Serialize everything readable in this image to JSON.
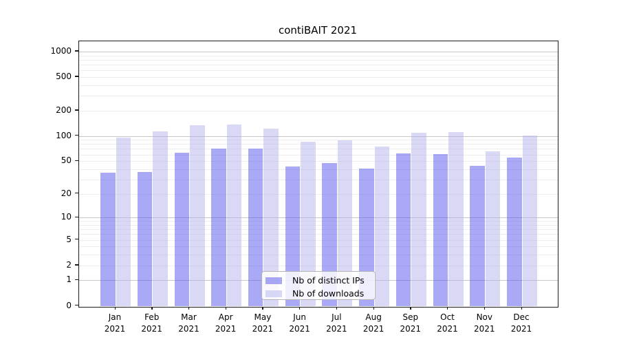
{
  "chart_data": {
    "type": "bar",
    "title": "contiBAIT 2021",
    "categories": [
      "Jan 2021",
      "Feb 2021",
      "Mar 2021",
      "Apr 2021",
      "May 2021",
      "Jun 2021",
      "Jul 2021",
      "Aug 2021",
      "Sep 2021",
      "Oct 2021",
      "Nov 2021",
      "Dec 2021"
    ],
    "category_line1": [
      "Jan",
      "Feb",
      "Mar",
      "Apr",
      "May",
      "Jun",
      "Jul",
      "Aug",
      "Sep",
      "Oct",
      "Nov",
      "Dec"
    ],
    "category_line2": "2021",
    "series": [
      {
        "name": "Nb of distinct IPs",
        "color": "rgba(83,83,235,0.5)",
        "solid_color": "#a9a9f5",
        "values": [
          36,
          37,
          63,
          71,
          70,
          43,
          47,
          41,
          62,
          61,
          44,
          55
        ]
      },
      {
        "name": "Nb of downloads",
        "color": "rgba(179,179,237,0.5)",
        "solid_color": "#d9d9f6",
        "values": [
          95,
          113,
          134,
          137,
          123,
          85,
          89,
          75,
          110,
          112,
          65,
          101
        ]
      }
    ],
    "xlabel": "",
    "ylabel": "",
    "yscale": "log1p",
    "ylim": [
      0,
      1320
    ],
    "yticks": [
      0,
      1,
      2,
      5,
      10,
      20,
      50,
      100,
      200,
      500,
      1000
    ],
    "major_gridlines": [
      1,
      10,
      100,
      1000
    ],
    "minor_gridlines": [
      2,
      3,
      4,
      5,
      6,
      7,
      8,
      9,
      20,
      30,
      40,
      50,
      60,
      70,
      80,
      90,
      200,
      300,
      400,
      500,
      600,
      700,
      800,
      900
    ],
    "grid": true,
    "legend_position": "lower center inside",
    "colors": {
      "major_grid": "#c6c6c6",
      "minor_grid": "#ededed",
      "axis": "#1a1a1a",
      "text": "#000000",
      "legend_bg": "rgba(255,255,255,0.8)",
      "legend_border": "#b4b4b4"
    }
  }
}
